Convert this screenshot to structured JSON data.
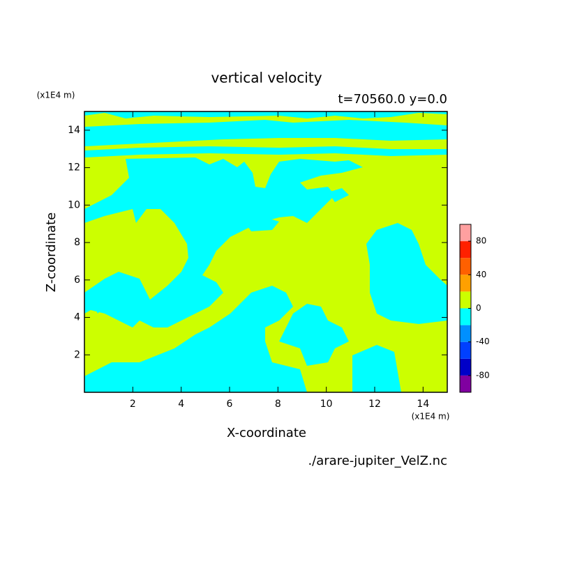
{
  "chart_data": {
    "type": "contour",
    "title": "vertical velocity",
    "subtitle": "t=70560.0 y=0.0",
    "x_label": "X-coordinate",
    "y_label": "Z-coordinate",
    "x_unit": "(x1E4 m)",
    "y_unit": "(x1E4 m)",
    "source": "./arare-jupiter_VelZ.nc",
    "xlim": [
      0,
      15
    ],
    "ylim": [
      0,
      15
    ],
    "xticks": [
      2,
      4,
      6,
      8,
      10,
      12,
      14
    ],
    "yticks": [
      2,
      4,
      6,
      8,
      10,
      12,
      14
    ],
    "colorbar": {
      "levels": [
        -100,
        -80,
        -60,
        -40,
        -20,
        0,
        20,
        40,
        60,
        80,
        100
      ],
      "colors": [
        "#8000a0",
        "#0000c8",
        "#0040ff",
        "#0090ff",
        "#00ffff",
        "#ccff00",
        "#ffa000",
        "#ff6000",
        "#ff2000",
        "#ffa0a0"
      ],
      "ticks": [
        -80,
        -40,
        0,
        40,
        80
      ]
    }
  }
}
